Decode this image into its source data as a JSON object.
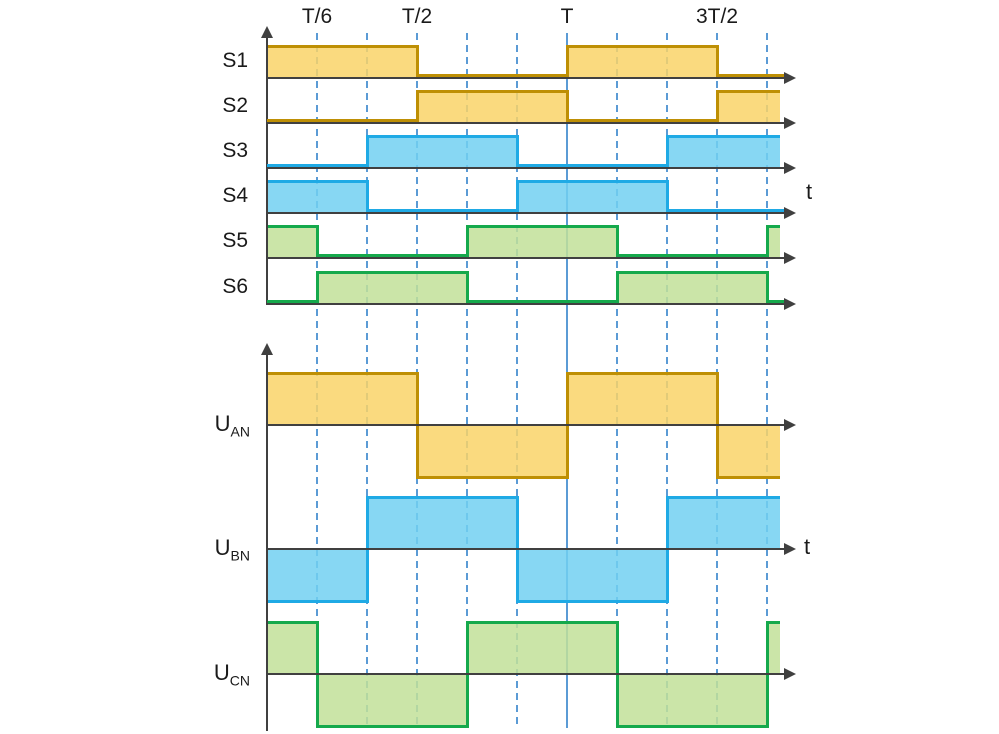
{
  "chart_data": {
    "type": "area",
    "title": "",
    "time_axis_label": "t",
    "x_unit": "T/6",
    "x_ticks": [
      {
        "label": "T/6",
        "t": 1
      },
      {
        "label": "T/2",
        "t": 3
      },
      {
        "label": "T",
        "t": 6
      },
      {
        "label": "3T/2",
        "t": 9
      }
    ],
    "dashed_gridlines_t": [
      1,
      2,
      3,
      4,
      5,
      7,
      8,
      9,
      10
    ],
    "solid_gridline_t": 6,
    "t_end_units": 10.26,
    "grid": "on",
    "switch_signals": [
      {
        "name": "S1",
        "color": "yellow",
        "high": [
          [
            0,
            3
          ],
          [
            6,
            9
          ]
        ]
      },
      {
        "name": "S2",
        "color": "yellow",
        "high": [
          [
            3,
            6
          ],
          [
            9,
            10.26
          ]
        ]
      },
      {
        "name": "S3",
        "color": "blue",
        "high": [
          [
            2,
            5
          ],
          [
            8,
            10.26
          ]
        ]
      },
      {
        "name": "S4",
        "color": "blue",
        "high": [
          [
            0,
            2
          ],
          [
            5,
            8
          ]
        ]
      },
      {
        "name": "S5",
        "color": "green",
        "high": [
          [
            0,
            1
          ],
          [
            4,
            7
          ],
          [
            10,
            10.26
          ]
        ]
      },
      {
        "name": "S6",
        "color": "green",
        "high": [
          [
            1,
            4
          ],
          [
            7,
            10
          ]
        ]
      }
    ],
    "voltage_signals": [
      {
        "name": "U",
        "sub": "AN",
        "color": "yellow",
        "positive": [
          [
            0,
            3
          ],
          [
            6,
            9
          ]
        ],
        "negative": [
          [
            3,
            6
          ],
          [
            9,
            10.26
          ]
        ]
      },
      {
        "name": "U",
        "sub": "BN",
        "color": "blue",
        "positive": [
          [
            2,
            5
          ],
          [
            8,
            10.26
          ]
        ],
        "negative": [
          [
            0,
            2
          ],
          [
            5,
            8
          ]
        ]
      },
      {
        "name": "U",
        "sub": "CN",
        "color": "green",
        "positive": [
          [
            0,
            1
          ],
          [
            4,
            7
          ],
          [
            10,
            10.26
          ]
        ],
        "negative": [
          [
            1,
            4
          ],
          [
            7,
            10
          ]
        ]
      }
    ],
    "colors": {
      "yellow": {
        "fill": "#FAD97E",
        "line": "#BE8F04"
      },
      "blue": {
        "fill": "#87D7F3",
        "line": "#1FAAE5"
      },
      "green": {
        "fill": "#CBE5A8",
        "line": "#15A94C"
      },
      "axis": "#404040",
      "grid": "#5B9BD5",
      "text": "#1A1A1A"
    }
  }
}
